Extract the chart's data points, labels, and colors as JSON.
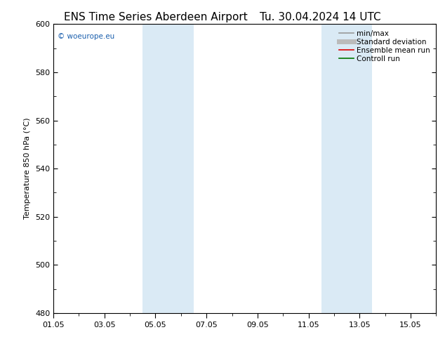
{
  "title_left": "ENS Time Series Aberdeen Airport",
  "title_right": "Tu. 30.04.2024 14 UTC",
  "ylabel": "Temperature 850 hPa (°C)",
  "ylim": [
    480,
    600
  ],
  "yticks": [
    480,
    500,
    520,
    540,
    560,
    580,
    600
  ],
  "xlim": [
    0,
    15
  ],
  "xtick_labels": [
    "01.05",
    "03.05",
    "05.05",
    "07.05",
    "09.05",
    "11.05",
    "13.05",
    "15.05"
  ],
  "xtick_positions": [
    0,
    2,
    4,
    6,
    8,
    10,
    12,
    14
  ],
  "shaded_bands": [
    {
      "xstart": 3.5,
      "xend": 5.5
    },
    {
      "xstart": 10.5,
      "xend": 12.5
    }
  ],
  "shaded_color": "#daeaf5",
  "background_color": "#ffffff",
  "watermark": "© woeurope.eu",
  "watermark_color": "#1a5fad",
  "legend_items": [
    {
      "label": "min/max",
      "color": "#999999",
      "lw": 1.2
    },
    {
      "label": "Standard deviation",
      "color": "#bbbbbb",
      "lw": 5
    },
    {
      "label": "Ensemble mean run",
      "color": "#dd0000",
      "lw": 1.2
    },
    {
      "label": "Controll run",
      "color": "#007700",
      "lw": 1.2
    }
  ],
  "title_fontsize": 11,
  "label_fontsize": 8,
  "tick_fontsize": 8,
  "legend_fontsize": 7.5
}
